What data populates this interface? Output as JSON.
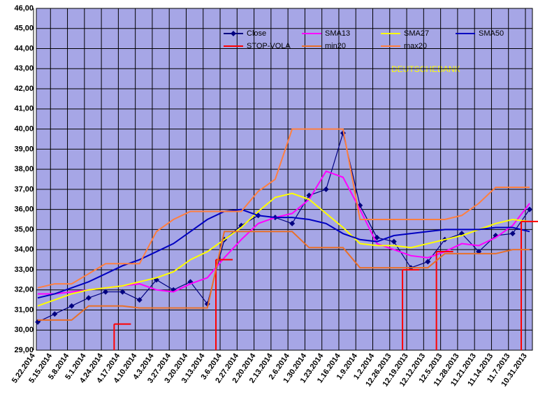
{
  "chart_data": {
    "type": "line",
    "categories": [
      "5.22.2014",
      "5.15.2014",
      "5.8.2014",
      "5.1.2014",
      "4.24.2014",
      "4.17.2014",
      "4.10.2014",
      "4.3.2014",
      "3.27.2014",
      "3.20.2014",
      "3.13.2014",
      "3.6.2014",
      "2.27.2014",
      "2.20.2014",
      "2.13.2014",
      "2.6.2014",
      "1.30.2014",
      "1.23.2014",
      "1.16.2014",
      "1.9.2014",
      "1.2.2014",
      "12.26.2013",
      "12.19.2013",
      "12.12.2013",
      "12.5.2013",
      "11.28.2013",
      "11.21.2013",
      "11.14.2013",
      "11.7.2013",
      "10.31.2013"
    ],
    "series": [
      {
        "name": "Close",
        "color": "#000080",
        "values": [
          30.4,
          30.8,
          31.2,
          31.6,
          31.9,
          31.9,
          31.5,
          32.5,
          32.0,
          32.4,
          31.3,
          34.5,
          35.2,
          35.7,
          35.6,
          35.3,
          36.7,
          37.0,
          39.8,
          36.2,
          34.6,
          34.4,
          33.1,
          33.4,
          34.5,
          34.8,
          33.9,
          34.7,
          34.8,
          36.0
        ]
      },
      {
        "name": "SMA13",
        "color": "#ff00ff",
        "values": [
          31.8,
          31.8,
          31.9,
          32.0,
          32.1,
          32.2,
          32.3,
          32.0,
          31.9,
          32.3,
          32.6,
          33.6,
          34.5,
          35.3,
          35.6,
          35.8,
          36.5,
          37.9,
          37.6,
          36.0,
          34.3,
          34.0,
          33.7,
          33.6,
          33.9,
          34.3,
          34.2,
          34.6,
          35.2,
          36.3
        ]
      },
      {
        "name": "SMA27",
        "color": "#ffff00",
        "values": [
          31.2,
          31.5,
          31.8,
          32.0,
          32.1,
          32.2,
          32.4,
          32.6,
          32.9,
          33.5,
          33.9,
          34.5,
          35.1,
          35.9,
          36.6,
          36.8,
          36.5,
          35.8,
          35.1,
          34.3,
          34.2,
          34.2,
          34.1,
          34.3,
          34.5,
          34.7,
          35.0,
          35.3,
          35.5,
          35.4
        ]
      },
      {
        "name": "SMA50",
        "color": "#0000c0",
        "values": [
          31.6,
          31.8,
          32.1,
          32.4,
          32.8,
          33.2,
          33.5,
          33.9,
          34.3,
          34.9,
          35.5,
          35.9,
          36.0,
          35.7,
          35.6,
          35.6,
          35.5,
          35.3,
          34.8,
          34.5,
          34.4,
          34.7,
          34.8,
          34.9,
          35.0,
          35.0,
          35.0,
          35.1,
          35.1,
          34.9
        ]
      },
      {
        "name": "STOP-VOLA",
        "color": "#ff0000",
        "values": [
          null,
          null,
          null,
          null,
          null,
          30.3,
          null,
          null,
          null,
          null,
          null,
          33.5,
          null,
          null,
          null,
          null,
          null,
          null,
          null,
          null,
          null,
          null,
          33.0,
          null,
          33.9,
          null,
          null,
          null,
          null,
          35.4
        ]
      },
      {
        "name": "min20",
        "color": "#e8702a",
        "values": [
          30.5,
          30.5,
          30.5,
          31.2,
          31.2,
          31.2,
          31.1,
          31.1,
          31.1,
          31.1,
          31.1,
          34.9,
          34.9,
          34.9,
          34.9,
          34.9,
          34.1,
          34.1,
          34.1,
          33.1,
          33.1,
          33.1,
          33.1,
          33.1,
          33.8,
          33.8,
          33.8,
          33.8,
          34.0,
          34.0
        ]
      },
      {
        "name": "max20",
        "color": "#ff7f3f",
        "values": [
          32.1,
          32.3,
          32.3,
          32.8,
          33.3,
          33.3,
          33.3,
          34.9,
          35.5,
          35.9,
          35.9,
          35.9,
          35.9,
          36.9,
          37.5,
          40.0,
          40.0,
          40.0,
          40.0,
          35.5,
          35.5,
          35.5,
          35.5,
          35.5,
          35.5,
          35.7,
          36.3,
          37.1,
          37.1,
          37.1
        ]
      }
    ],
    "annotation": "DEUTSCHEBANK",
    "ylim": [
      29,
      46
    ],
    "yticks": [
      {
        "value": 29,
        "label": "29,00"
      },
      {
        "value": 30,
        "label": "30,00"
      },
      {
        "value": 31,
        "label": "31,00"
      },
      {
        "value": 32,
        "label": "32,00"
      },
      {
        "value": 33,
        "label": "33,00"
      },
      {
        "value": 34,
        "label": "34,00"
      },
      {
        "value": 35,
        "label": "35,00"
      },
      {
        "value": 36,
        "label": "36,00"
      },
      {
        "value": 37,
        "label": "37,00"
      },
      {
        "value": 38,
        "label": "38,00"
      },
      {
        "value": 39,
        "label": "39,00"
      },
      {
        "value": 40,
        "label": "40,00"
      },
      {
        "value": 41,
        "label": "41,00"
      },
      {
        "value": 42,
        "label": "42,00"
      },
      {
        "value": 43,
        "label": "43,00"
      },
      {
        "value": 44,
        "label": "44,00"
      },
      {
        "value": 45,
        "label": "45,00"
      },
      {
        "value": 46,
        "label": "46,00"
      }
    ],
    "grid": true
  }
}
